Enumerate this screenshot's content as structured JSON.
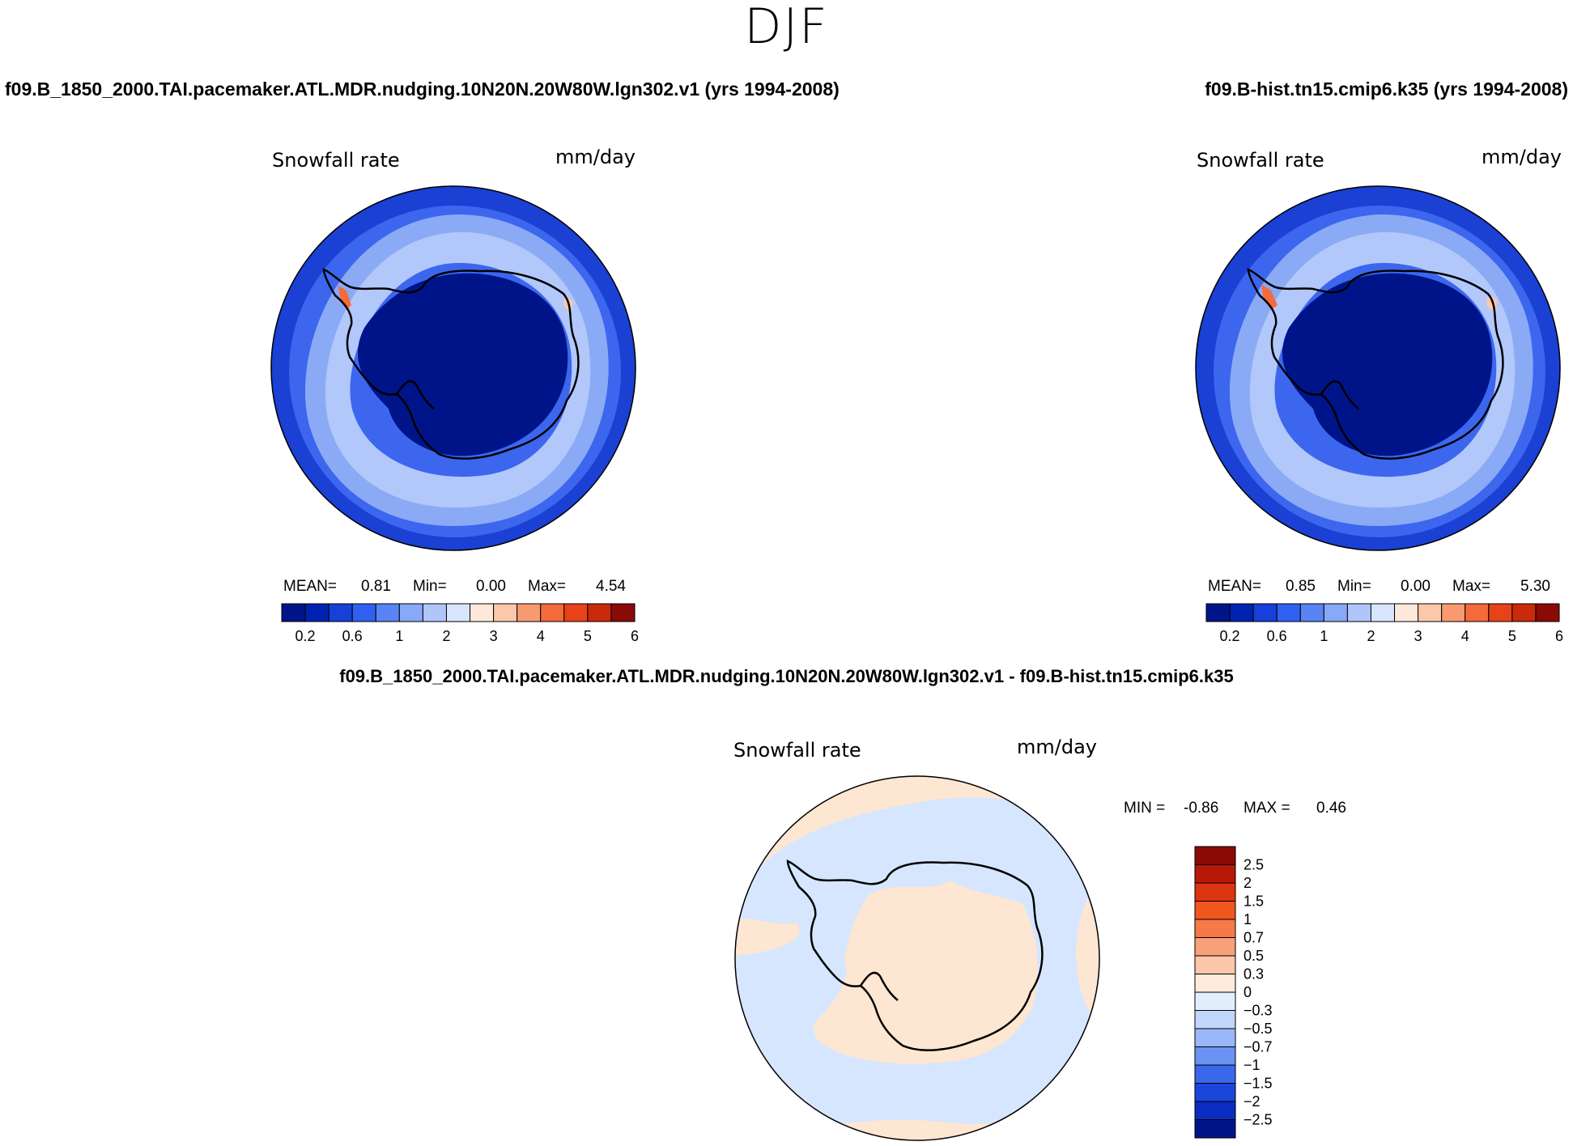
{
  "season": "DJF",
  "panels": {
    "left": {
      "case_title": "f09.B_1850_2000.TAI.pacemaker.ATL.MDR.nudging.10N20N.20W80W.lgn302.v1 (yrs 1994-2008)",
      "variable": "Snowfall rate",
      "units": "mm/day",
      "mean_label": "MEAN=",
      "mean": "0.81",
      "min_label": "Min=",
      "min": "0.00",
      "max_label": "Max=",
      "max": "4.54"
    },
    "right": {
      "case_title": "f09.B-hist.tn15.cmip6.k35 (yrs 1994-2008)",
      "variable": "Snowfall rate",
      "units": "mm/day",
      "mean_label": "MEAN=",
      "mean": "0.85",
      "min_label": "Min=",
      "min": "0.00",
      "max_label": "Max=",
      "max": "5.30"
    },
    "diff": {
      "case_title": "f09.B_1850_2000.TAI.pacemaker.ATL.MDR.nudging.10N20N.20W80W.lgn302.v1 - f09.B-hist.tn15.cmip6.k35",
      "variable": "Snowfall rate",
      "units": "mm/day",
      "min_label": "MIN =",
      "min": "-0.86",
      "max_label": "MAX =",
      "max": "0.46"
    }
  },
  "colorbar_main": {
    "colors": [
      "#00148a",
      "#0022b0",
      "#1640d8",
      "#3060f0",
      "#5a84f5",
      "#88a8f8",
      "#b0c6fb",
      "#d8e6fd",
      "#fde8da",
      "#fbc8ac",
      "#f89a70",
      "#f56a3a",
      "#e84218",
      "#c82a0a",
      "#8a0a06"
    ],
    "ticks": [
      "0.2",
      "0.6",
      "1",
      "2",
      "3",
      "4",
      "5",
      "6"
    ]
  },
  "colorbar_diff": {
    "colors": [
      "#8a0a06",
      "#b81808",
      "#dc3410",
      "#f0561e",
      "#f57a48",
      "#f8a07a",
      "#fbc6aa",
      "#feeadc",
      "#e2eefe",
      "#c2d6fb",
      "#9ab8f8",
      "#6a92f2",
      "#3a68ea",
      "#1a46dc",
      "#0a2cc0",
      "#00148a"
    ],
    "ticks": [
      "2.5",
      "2",
      "1.5",
      "1",
      "0.7",
      "0.5",
      "0.3",
      "0",
      "−0.3",
      "−0.5",
      "−0.7",
      "−1",
      "−1.5",
      "−2",
      "−2.5"
    ]
  },
  "map_colors": {
    "antarctica_left": "#00148a",
    "antarctica_right": "#00148a",
    "ring_outer": "#1a40d4",
    "ring_mid": "#3c66ee",
    "ring_inner": "#8aaaf6",
    "ocean_light": "#b2c8fb",
    "diff_blue": "#d6e6fe",
    "diff_peach": "#fde6d2",
    "coast": "#000000"
  }
}
